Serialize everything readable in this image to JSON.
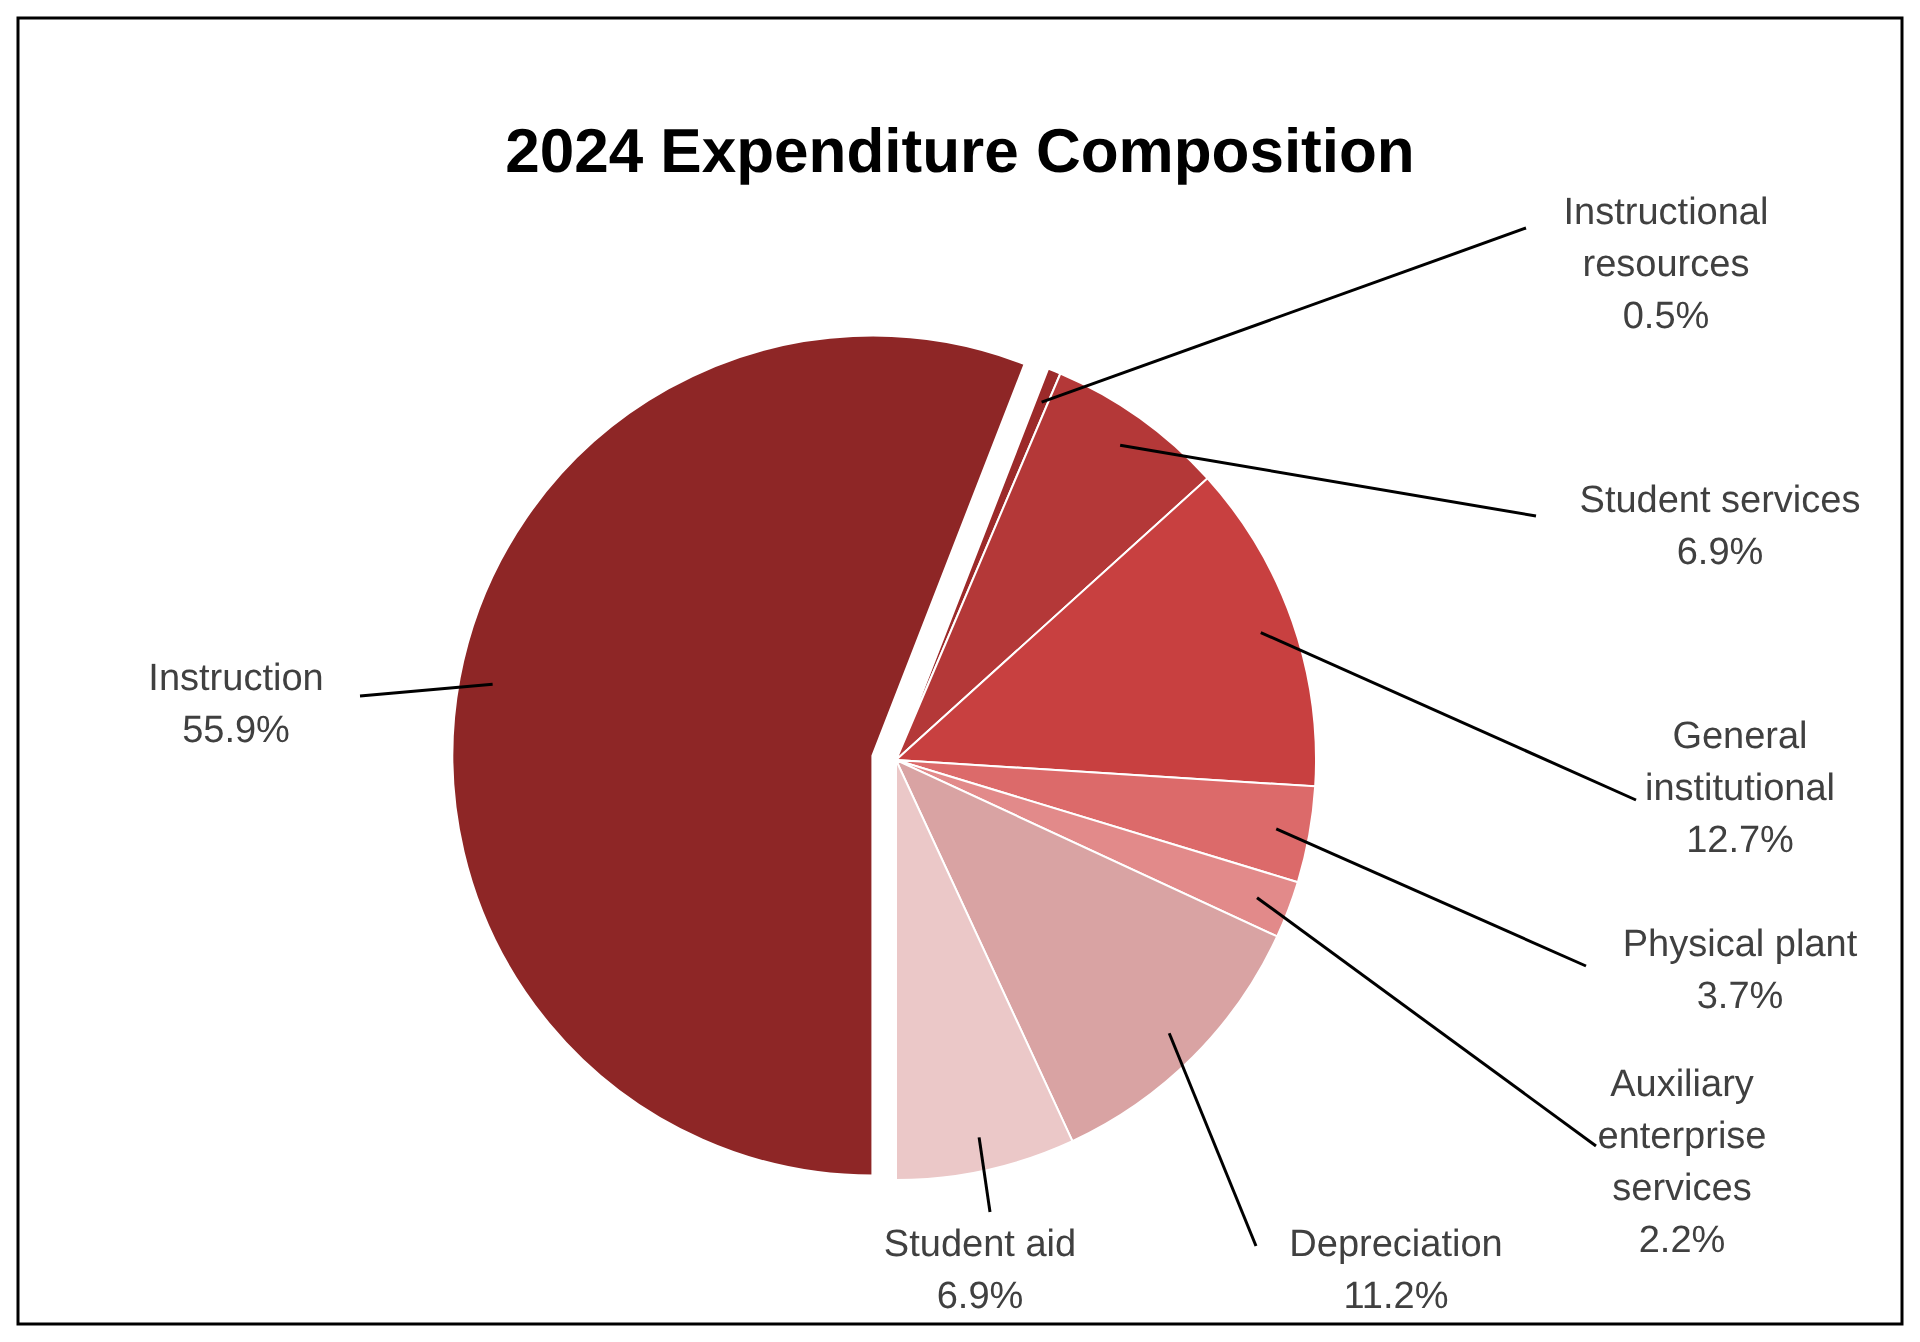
{
  "chart_data": {
    "type": "pie",
    "title": "2024 Expenditure Composition",
    "categories": [
      "Instruction",
      "Instructional resources",
      "Student services",
      "General institutional",
      "Physical plant",
      "Auxiliary enterprise services",
      "Depreciation",
      "Student aid"
    ],
    "values": [
      55.9,
      0.5,
      6.9,
      12.7,
      3.7,
      2.2,
      11.2,
      6.9
    ],
    "value_labels": [
      "55.9%",
      "0.5%",
      "6.9%",
      "12.7%",
      "3.7%",
      "2.2%",
      "11.2%",
      "6.9%"
    ],
    "colors": [
      "#8e2626",
      "#9c2a2a",
      "#b43838",
      "#c84040",
      "#dc6a6a",
      "#e28a8a",
      "#d9a3a3",
      "#ebc8c8"
    ]
  }
}
